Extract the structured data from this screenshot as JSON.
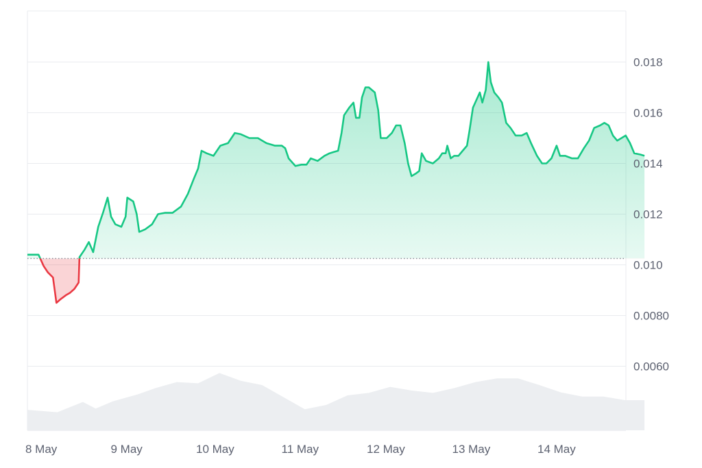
{
  "chart_data": {
    "type": "area",
    "title": "",
    "xlabel": "",
    "ylabel": "",
    "ylim": [
      0.0042,
      0.02
    ],
    "xlim": [
      0,
      7.0
    ],
    "grid": true,
    "baseline": 0.01025,
    "colors": {
      "up": "#16c784",
      "down": "#ea3943",
      "grid": "#e9ebef",
      "volume": "#eceef1",
      "tick": "#5c6170"
    },
    "x_ticks": [
      {
        "x": 0,
        "label": "8 May"
      },
      {
        "x": 1,
        "label": "9 May"
      },
      {
        "x": 2,
        "label": "10 May"
      },
      {
        "x": 3,
        "label": "11 May"
      },
      {
        "x": 4,
        "label": "12 May"
      },
      {
        "x": 5,
        "label": "13 May"
      },
      {
        "x": 6,
        "label": "14 May"
      }
    ],
    "y_ticks": [
      {
        "y": 0.018,
        "label": "0.018"
      },
      {
        "y": 0.016,
        "label": "0.016"
      },
      {
        "y": 0.014,
        "label": "0.014"
      },
      {
        "y": 0.012,
        "label": "0.012"
      },
      {
        "y": 0.01,
        "label": "0.010"
      },
      {
        "y": 0.008,
        "label": "0.0080"
      },
      {
        "y": 0.006,
        "label": "0.0060"
      }
    ],
    "series": [
      {
        "values": [
          [
            0.0,
            0.0104
          ],
          [
            0.08,
            0.0104
          ],
          [
            0.13,
            0.0104
          ],
          [
            0.19,
            0.00995
          ],
          [
            0.24,
            0.0097
          ],
          [
            0.3,
            0.0095
          ],
          [
            0.34,
            0.0085
          ],
          [
            0.39,
            0.00865
          ],
          [
            0.45,
            0.0088
          ],
          [
            0.5,
            0.0089
          ],
          [
            0.55,
            0.00905
          ],
          [
            0.6,
            0.0093
          ],
          [
            0.61,
            0.0103
          ],
          [
            0.67,
            0.0106
          ],
          [
            0.72,
            0.0109
          ],
          [
            0.77,
            0.0105
          ],
          [
            0.83,
            0.0115
          ],
          [
            0.89,
            0.0121
          ],
          [
            0.94,
            0.01265
          ],
          [
            0.98,
            0.0119
          ],
          [
            1.03,
            0.0116
          ],
          [
            1.1,
            0.0115
          ],
          [
            1.15,
            0.0119
          ],
          [
            1.17,
            0.01265
          ],
          [
            1.24,
            0.0125
          ],
          [
            1.28,
            0.012
          ],
          [
            1.31,
            0.0113
          ],
          [
            1.38,
            0.0114
          ],
          [
            1.46,
            0.0116
          ],
          [
            1.53,
            0.012
          ],
          [
            1.61,
            0.01205
          ],
          [
            1.7,
            0.01205
          ],
          [
            1.8,
            0.0123
          ],
          [
            1.88,
            0.0128
          ],
          [
            1.95,
            0.0134
          ],
          [
            2.0,
            0.0138
          ],
          [
            2.04,
            0.0145
          ],
          [
            2.1,
            0.0144
          ],
          [
            2.18,
            0.0143
          ],
          [
            2.26,
            0.0147
          ],
          [
            2.35,
            0.0148
          ],
          [
            2.43,
            0.0152
          ],
          [
            2.5,
            0.01515
          ],
          [
            2.6,
            0.015
          ],
          [
            2.7,
            0.015
          ],
          [
            2.8,
            0.0148
          ],
          [
            2.9,
            0.0147
          ],
          [
            2.98,
            0.0147
          ],
          [
            3.02,
            0.0146
          ],
          [
            3.06,
            0.0142
          ],
          [
            3.14,
            0.0139
          ],
          [
            3.21,
            0.01395
          ],
          [
            3.27,
            0.01395
          ],
          [
            3.32,
            0.0142
          ],
          [
            3.4,
            0.0141
          ],
          [
            3.48,
            0.0143
          ],
          [
            3.54,
            0.0144
          ],
          [
            3.59,
            0.01445
          ],
          [
            3.64,
            0.0145
          ],
          [
            3.68,
            0.0152
          ],
          [
            3.71,
            0.0159
          ],
          [
            3.77,
            0.0162
          ],
          [
            3.82,
            0.0164
          ],
          [
            3.85,
            0.0158
          ],
          [
            3.89,
            0.0158
          ],
          [
            3.92,
            0.0166
          ],
          [
            3.96,
            0.017
          ],
          [
            4.0,
            0.017
          ],
          [
            4.07,
            0.0168
          ],
          [
            4.11,
            0.0161
          ],
          [
            4.14,
            0.015
          ],
          [
            4.21,
            0.015
          ],
          [
            4.27,
            0.0152
          ],
          [
            4.32,
            0.0155
          ],
          [
            4.37,
            0.0155
          ],
          [
            4.42,
            0.0148
          ],
          [
            4.46,
            0.014
          ],
          [
            4.5,
            0.0135
          ],
          [
            4.55,
            0.0136
          ],
          [
            4.59,
            0.0137
          ],
          [
            4.62,
            0.0144
          ],
          [
            4.67,
            0.0141
          ],
          [
            4.75,
            0.014
          ],
          [
            4.82,
            0.0142
          ],
          [
            4.86,
            0.0144
          ],
          [
            4.9,
            0.0144
          ],
          [
            4.92,
            0.0147
          ],
          [
            4.96,
            0.0142
          ],
          [
            5.0,
            0.0143
          ],
          [
            5.05,
            0.0143
          ],
          [
            5.1,
            0.0145
          ],
          [
            5.15,
            0.0147
          ],
          [
            5.18,
            0.0153
          ],
          [
            5.22,
            0.0162
          ],
          [
            5.26,
            0.0165
          ],
          [
            5.3,
            0.0168
          ],
          [
            5.33,
            0.0164
          ],
          [
            5.37,
            0.0169
          ],
          [
            5.4,
            0.018
          ],
          [
            5.43,
            0.0172
          ],
          [
            5.47,
            0.0168
          ],
          [
            5.52,
            0.0166
          ],
          [
            5.56,
            0.0164
          ],
          [
            5.61,
            0.0156
          ],
          [
            5.66,
            0.0154
          ],
          [
            5.72,
            0.0151
          ],
          [
            5.79,
            0.0151
          ],
          [
            5.85,
            0.0152
          ],
          [
            5.9,
            0.0148
          ],
          [
            5.97,
            0.0143
          ],
          [
            6.03,
            0.014
          ],
          [
            6.08,
            0.014
          ],
          [
            6.14,
            0.0142
          ],
          [
            6.2,
            0.0147
          ],
          [
            6.24,
            0.0143
          ],
          [
            6.3,
            0.0143
          ],
          [
            6.38,
            0.0142
          ],
          [
            6.45,
            0.0142
          ],
          [
            6.52,
            0.0146
          ],
          [
            6.58,
            0.0149
          ],
          [
            6.64,
            0.0154
          ],
          [
            6.71,
            0.0155
          ],
          [
            6.76,
            0.0156
          ],
          [
            6.81,
            0.0155
          ],
          [
            6.86,
            0.0151
          ],
          [
            6.91,
            0.0149
          ],
          [
            6.96,
            0.015
          ],
          [
            7.01,
            0.0151
          ],
          [
            7.06,
            0.0148
          ],
          [
            7.11,
            0.0144
          ],
          [
            7.18,
            0.01435
          ],
          [
            7.23,
            0.0143
          ]
        ]
      }
    ],
    "volume": [
      [
        0.0,
        0.34
      ],
      [
        0.35,
        0.3
      ],
      [
        0.65,
        0.47
      ],
      [
        0.8,
        0.36
      ],
      [
        1.0,
        0.48
      ],
      [
        1.3,
        0.6
      ],
      [
        1.5,
        0.7
      ],
      [
        1.75,
        0.8
      ],
      [
        2.0,
        0.78
      ],
      [
        2.25,
        0.95
      ],
      [
        2.5,
        0.82
      ],
      [
        2.75,
        0.75
      ],
      [
        3.0,
        0.55
      ],
      [
        3.25,
        0.35
      ],
      [
        3.5,
        0.42
      ],
      [
        3.75,
        0.58
      ],
      [
        4.0,
        0.62
      ],
      [
        4.25,
        0.72
      ],
      [
        4.5,
        0.66
      ],
      [
        4.75,
        0.62
      ],
      [
        5.0,
        0.7
      ],
      [
        5.25,
        0.8
      ],
      [
        5.5,
        0.86
      ],
      [
        5.75,
        0.86
      ],
      [
        6.0,
        0.75
      ],
      [
        6.25,
        0.63
      ],
      [
        6.5,
        0.56
      ],
      [
        6.75,
        0.56
      ],
      [
        7.0,
        0.5
      ],
      [
        7.23,
        0.5
      ]
    ]
  }
}
